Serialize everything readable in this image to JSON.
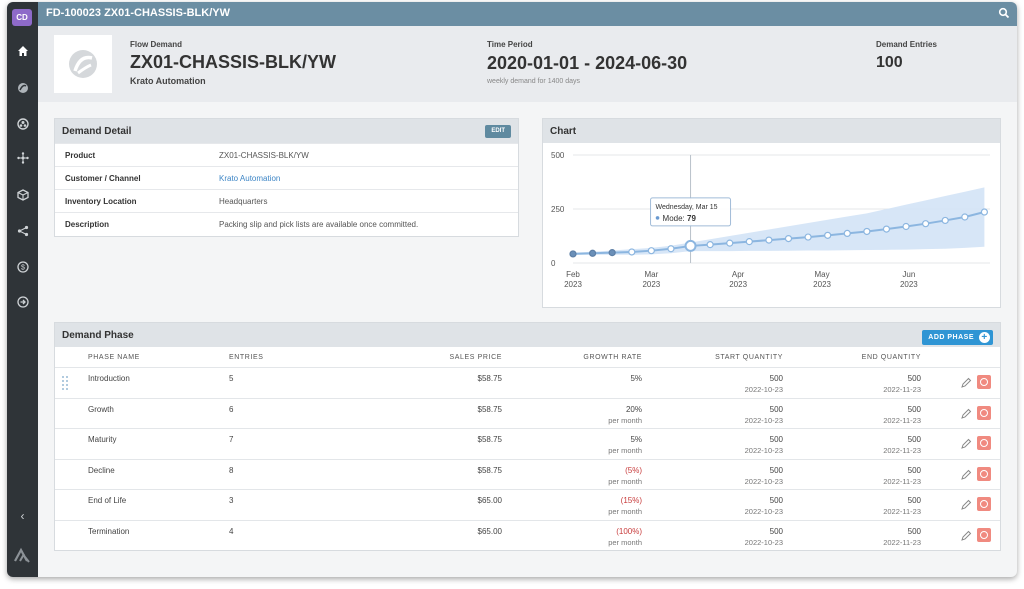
{
  "rail": {
    "logo_text": "CD",
    "nav": [
      "home-icon",
      "flow-icon",
      "shared-icon",
      "network-icon",
      "box-icon",
      "share-icon",
      "dollar-icon",
      "arrow-circle-icon"
    ],
    "collapse_icon": "chevron-left-icon"
  },
  "topbar": {
    "title": "FD-100023 ZX01-CHASSIS-BLK/YW"
  },
  "hero": {
    "type_label": "Flow Demand",
    "name": "ZX01-CHASSIS-BLK/YW",
    "customer": "Krato Automation",
    "time_label": "Time Period",
    "time_range": "2020-01-01 - 2024-06-30",
    "time_note": "weekly demand for 1400 days",
    "entries_label": "Demand Entries",
    "entries": "100"
  },
  "detail": {
    "title": "Demand Detail",
    "edit_label": "EDIT",
    "rows": [
      {
        "label": "Product",
        "value": "ZX01-CHASSIS-BLK/YW"
      },
      {
        "label": "Customer / Channel",
        "value": "Krato Automation"
      },
      {
        "label": "Inventory Location",
        "value": "Headquarters"
      },
      {
        "label": "Description",
        "value": "Packing slip and pick lists are available once committed."
      }
    ]
  },
  "chart": {
    "title": "Chart",
    "tooltip_date": "Wednesday, Mar 15",
    "tooltip_label": "Mode: ",
    "tooltip_value": "79"
  },
  "chart_data": {
    "type": "line",
    "title": "Chart",
    "x_ticks": [
      "Feb 2023",
      "Mar 2023",
      "Apr 2023",
      "May 2023",
      "Jun 2023"
    ],
    "x_range": [
      "2023-02-01",
      "2023-06-30"
    ],
    "y_ticks": [
      0,
      250,
      500
    ],
    "ylim": [
      0,
      500
    ],
    "grid": true,
    "series": [
      {
        "name": "Mode",
        "x": [
          "2023-02-01",
          "2023-02-08",
          "2023-02-15",
          "2023-02-22",
          "2023-03-01",
          "2023-03-08",
          "2023-03-15",
          "2023-03-22",
          "2023-03-29",
          "2023-04-05",
          "2023-04-12",
          "2023-04-19",
          "2023-04-26",
          "2023-05-03",
          "2023-05-10",
          "2023-05-17",
          "2023-05-24",
          "2023-05-31",
          "2023-06-07",
          "2023-06-14",
          "2023-06-21",
          "2023-06-28"
        ],
        "values": [
          42,
          45,
          48,
          51,
          57,
          66,
          79,
          85,
          92,
          99,
          106,
          113,
          120,
          128,
          137,
          146,
          157,
          169,
          182,
          197,
          213,
          236
        ],
        "band_low": [
          38,
          38,
          38,
          38,
          40,
          45,
          55,
          55,
          55,
          56,
          56,
          57,
          58,
          58,
          59,
          60,
          61,
          62,
          64,
          66,
          70,
          75
        ],
        "band_high": [
          48,
          52,
          58,
          64,
          70,
          80,
          95,
          110,
          125,
          140,
          155,
          170,
          185,
          200,
          215,
          230,
          250,
          270,
          290,
          310,
          330,
          350
        ]
      }
    ],
    "highlight": {
      "x": "2023-03-15",
      "value": 79
    }
  },
  "phase": {
    "title": "Demand Phase",
    "add_label": "ADD PHASE",
    "columns": [
      "PHASE NAME",
      "ENTRIES",
      "SALES PRICE",
      "GROWTH  RATE",
      "START QUANTITY",
      "END QUANTITY"
    ],
    "rows": [
      {
        "name": "Introduction",
        "entries": "5",
        "price": "$58.75",
        "growth": "5%",
        "growth_sub": "",
        "neg": false,
        "start_qty": "500",
        "start_date": "2022-10-23",
        "end_qty": "500",
        "end_date": "2022-11-23"
      },
      {
        "name": "Growth",
        "entries": "6",
        "price": "$58.75",
        "growth": "20%",
        "growth_sub": "per month",
        "neg": false,
        "start_qty": "500",
        "start_date": "2022-10-23",
        "end_qty": "500",
        "end_date": "2022-11-23"
      },
      {
        "name": "Maturity",
        "entries": "7",
        "price": "$58.75",
        "growth": "5%",
        "growth_sub": "per month",
        "neg": false,
        "start_qty": "500",
        "start_date": "2022-10-23",
        "end_qty": "500",
        "end_date": "2022-11-23"
      },
      {
        "name": "Decline",
        "entries": "8",
        "price": "$58.75",
        "growth": "(5%)",
        "growth_sub": "per month",
        "neg": true,
        "start_qty": "500",
        "start_date": "2022-10-23",
        "end_qty": "500",
        "end_date": "2022-11-23"
      },
      {
        "name": "End of Life",
        "entries": "3",
        "price": "$65.00",
        "growth": "(15%)",
        "growth_sub": "per month",
        "neg": true,
        "start_qty": "500",
        "start_date": "2022-10-23",
        "end_qty": "500",
        "end_date": "2022-11-23"
      },
      {
        "name": "Termination",
        "entries": "4",
        "price": "$65.00",
        "growth": "(100%)",
        "growth_sub": "per month",
        "neg": true,
        "start_qty": "500",
        "start_date": "2022-10-23",
        "end_qty": "500",
        "end_date": "2022-11-23"
      }
    ]
  },
  "colors": {
    "topbar": "#6b8ea3",
    "rail": "#2f3438",
    "accent": "#2f95d4",
    "line": "#8cb6e0",
    "band": "#d3e3f6",
    "negative": "#c83c3c",
    "delete": "#f08a80"
  }
}
